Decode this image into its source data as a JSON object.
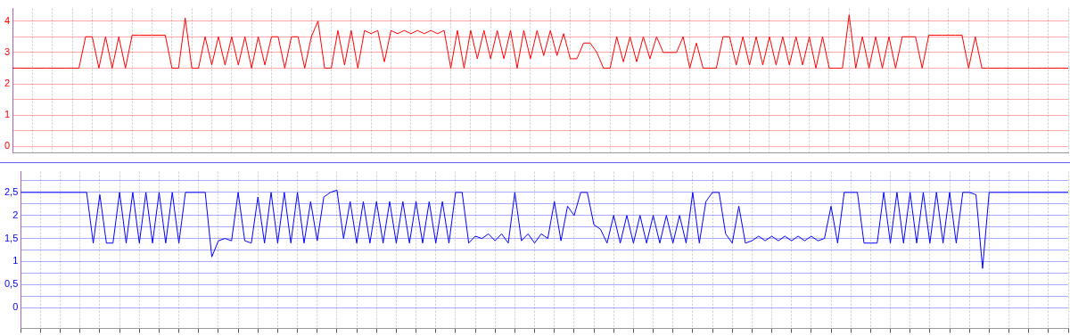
{
  "chart_data": [
    {
      "type": "line",
      "categories": [
        null,
        null,
        null,
        null,
        null,
        null,
        null,
        null,
        null,
        null,
        null,
        null,
        null,
        null,
        null,
        null,
        null,
        null,
        null,
        null,
        null,
        null,
        null,
        null,
        null,
        null,
        null,
        null,
        null,
        null,
        null,
        null,
        null,
        null,
        null,
        null,
        null,
        null,
        null,
        null,
        null,
        null,
        null,
        null,
        null,
        null,
        null,
        null,
        null,
        null,
        null,
        null,
        null,
        null,
        null,
        null,
        null,
        null,
        null,
        null,
        null,
        null,
        null,
        null,
        null,
        null,
        null,
        null,
        null,
        null,
        null,
        null,
        null,
        null,
        null,
        null,
        null,
        null,
        null,
        null,
        null,
        null,
        null,
        null,
        null,
        null,
        null,
        null,
        null,
        null,
        null,
        null,
        null,
        null,
        null,
        null,
        null,
        null,
        null,
        null,
        null,
        null,
        null,
        null,
        null,
        null,
        null,
        null,
        null,
        null,
        null,
        null,
        null,
        null,
        null,
        null,
        null,
        null,
        null,
        null,
        null,
        null,
        null,
        null,
        null,
        null,
        null,
        null,
        null,
        null,
        null,
        null,
        null,
        null,
        null,
        null,
        null,
        null,
        null,
        null,
        null,
        null,
        null,
        null,
        null,
        null,
        null,
        null,
        null,
        null,
        null,
        null,
        null,
        null,
        null,
        null,
        null,
        null,
        null,
        null
      ],
      "series": [
        {
          "color": "#ff0000",
          "values": [
            2.5,
            2.5,
            2.5,
            2.5,
            2.5,
            2.5,
            2.5,
            2.5,
            2.5,
            2.5,
            2.5,
            3.5,
            3.5,
            2.5,
            3.5,
            2.5,
            3.5,
            2.5,
            3.55,
            3.55,
            3.55,
            3.55,
            3.55,
            3.55,
            2.5,
            2.5,
            4.1,
            2.5,
            2.5,
            3.5,
            2.6,
            3.5,
            2.6,
            3.5,
            2.6,
            3.5,
            2.5,
            3.5,
            2.6,
            3.5,
            3.5,
            2.5,
            3.5,
            3.5,
            2.5,
            3.5,
            4.0,
            2.5,
            2.5,
            3.7,
            2.6,
            3.7,
            2.5,
            3.7,
            3.6,
            3.7,
            2.7,
            3.7,
            3.6,
            3.7,
            3.6,
            3.7,
            3.6,
            3.7,
            3.6,
            3.7,
            2.5,
            3.7,
            2.5,
            3.7,
            2.8,
            3.7,
            2.8,
            3.7,
            2.8,
            3.7,
            2.5,
            3.7,
            2.8,
            3.7,
            2.9,
            3.7,
            2.9,
            3.6,
            2.8,
            2.8,
            3.3,
            3.3,
            3.0,
            2.5,
            2.5,
            3.5,
            2.7,
            3.5,
            2.7,
            3.5,
            2.8,
            3.5,
            3.0,
            3.0,
            3.0,
            3.5,
            2.5,
            3.3,
            2.5,
            2.5,
            2.5,
            3.5,
            3.5,
            2.6,
            3.5,
            2.6,
            3.5,
            2.6,
            3.5,
            2.6,
            3.5,
            2.6,
            3.5,
            2.6,
            3.5,
            2.5,
            3.5,
            2.5,
            2.5,
            2.5,
            4.2,
            2.5,
            3.5,
            2.5,
            3.5,
            2.5,
            3.5,
            2.5,
            3.5,
            3.5,
            3.5,
            2.5,
            3.55,
            3.55,
            3.55,
            3.55,
            3.55,
            3.55,
            2.5,
            3.5,
            2.5,
            2.5,
            2.5,
            2.5,
            2.5,
            2.5,
            2.5,
            2.5,
            2.5,
            2.5,
            2.5,
            2.5,
            2.5,
            2.5
          ]
        }
      ],
      "ylim": [
        -0.2,
        4.4
      ],
      "yticks": [
        0,
        {
          "value": 0.5,
          "label": null
        },
        1,
        {
          "value": 1.5,
          "label": null
        },
        2,
        {
          "value": 2.5,
          "label": null
        },
        3,
        {
          "value": 3.5,
          "label": null
        },
        4
      ],
      "grid": true,
      "tick_labels": "y"
    },
    {
      "type": "line",
      "categories": [
        null,
        null,
        null,
        null,
        null,
        null,
        null,
        null,
        null,
        null,
        null,
        null,
        null,
        null,
        null,
        null,
        null,
        null,
        null,
        null,
        null,
        null,
        null,
        null,
        null,
        null,
        null,
        null,
        null,
        null,
        null,
        null,
        null,
        null,
        null,
        null,
        null,
        null,
        null,
        null,
        null,
        null,
        null,
        null,
        null,
        null,
        null,
        null,
        null,
        null,
        null,
        null,
        null,
        null,
        null,
        null,
        null,
        null,
        null,
        null,
        null,
        null,
        null,
        null,
        null,
        null,
        null,
        null,
        null,
        null,
        null,
        null,
        null,
        null,
        null,
        null,
        null,
        null,
        null,
        null,
        null,
        null,
        null,
        null,
        null,
        null,
        null,
        null,
        null,
        null,
        null,
        null,
        null,
        null,
        null,
        null,
        null,
        null,
        null,
        null,
        null,
        null,
        null,
        null,
        null,
        null,
        null,
        null,
        null,
        null,
        null,
        null,
        null,
        null,
        null,
        null,
        null,
        null,
        null,
        null,
        null,
        null,
        null,
        null,
        null,
        null,
        null,
        null,
        null,
        null,
        null,
        null,
        null,
        null,
        null,
        null,
        null,
        null,
        null,
        null,
        null,
        null,
        null,
        null,
        null,
        null,
        null,
        null,
        null,
        null,
        null,
        null,
        null,
        null,
        null,
        null,
        null,
        null,
        null,
        null
      ],
      "series": [
        {
          "color": "#0000ff",
          "values": [
            2.5,
            2.5,
            2.5,
            2.5,
            2.5,
            2.5,
            2.5,
            2.5,
            2.5,
            2.5,
            2.5,
            1.4,
            2.45,
            1.4,
            1.4,
            2.5,
            1.4,
            2.5,
            1.4,
            2.5,
            1.4,
            2.5,
            1.4,
            2.5,
            1.4,
            2.5,
            2.5,
            2.5,
            2.5,
            1.1,
            1.45,
            1.5,
            1.45,
            2.5,
            1.45,
            1.4,
            2.4,
            1.4,
            2.5,
            1.4,
            2.5,
            1.4,
            2.5,
            1.4,
            2.3,
            1.45,
            2.4,
            2.5,
            2.55,
            1.5,
            2.3,
            1.4,
            2.3,
            1.4,
            2.3,
            1.4,
            2.3,
            1.4,
            2.3,
            1.4,
            2.3,
            1.4,
            2.3,
            1.4,
            2.3,
            1.4,
            2.5,
            2.5,
            1.4,
            1.55,
            1.5,
            1.6,
            1.45,
            1.6,
            1.4,
            2.5,
            1.45,
            1.6,
            1.4,
            1.6,
            1.5,
            2.3,
            1.45,
            2.2,
            2.0,
            2.5,
            2.5,
            1.8,
            1.7,
            1.4,
            2.0,
            1.4,
            2.0,
            1.4,
            2.0,
            1.4,
            2.0,
            1.4,
            2.0,
            1.4,
            2.0,
            1.4,
            2.5,
            1.4,
            2.3,
            2.5,
            2.5,
            1.6,
            1.4,
            2.2,
            1.4,
            1.45,
            1.55,
            1.45,
            1.55,
            1.45,
            1.55,
            1.45,
            1.55,
            1.45,
            1.55,
            1.45,
            1.5,
            2.2,
            1.4,
            2.5,
            2.5,
            2.5,
            1.4,
            1.4,
            1.4,
            2.5,
            1.4,
            2.5,
            1.4,
            2.5,
            1.4,
            2.5,
            1.4,
            2.5,
            1.4,
            2.5,
            1.4,
            2.5,
            2.5,
            2.45,
            0.85,
            2.5,
            2.5,
            2.5,
            2.5,
            2.5,
            2.5,
            2.5,
            2.5,
            2.5,
            2.5,
            2.5,
            2.5,
            2.5
          ]
        }
      ],
      "ylim": [
        -0.45,
        2.95
      ],
      "yticks": [
        0,
        {
          "value": 0.25,
          "label": null
        },
        {
          "value": 0.5,
          "label": "0,5"
        },
        {
          "value": 0.75,
          "label": null
        },
        1,
        {
          "value": 1.25,
          "label": null
        },
        {
          "value": 1.5,
          "label": "1,5"
        },
        {
          "value": 1.75,
          "label": null
        },
        2,
        {
          "value": 2.25,
          "label": null
        },
        {
          "value": 2.5,
          "label": "2,5"
        },
        {
          "value": 2.75,
          "label": null
        }
      ],
      "grid": true,
      "tick_labels": "y"
    }
  ]
}
